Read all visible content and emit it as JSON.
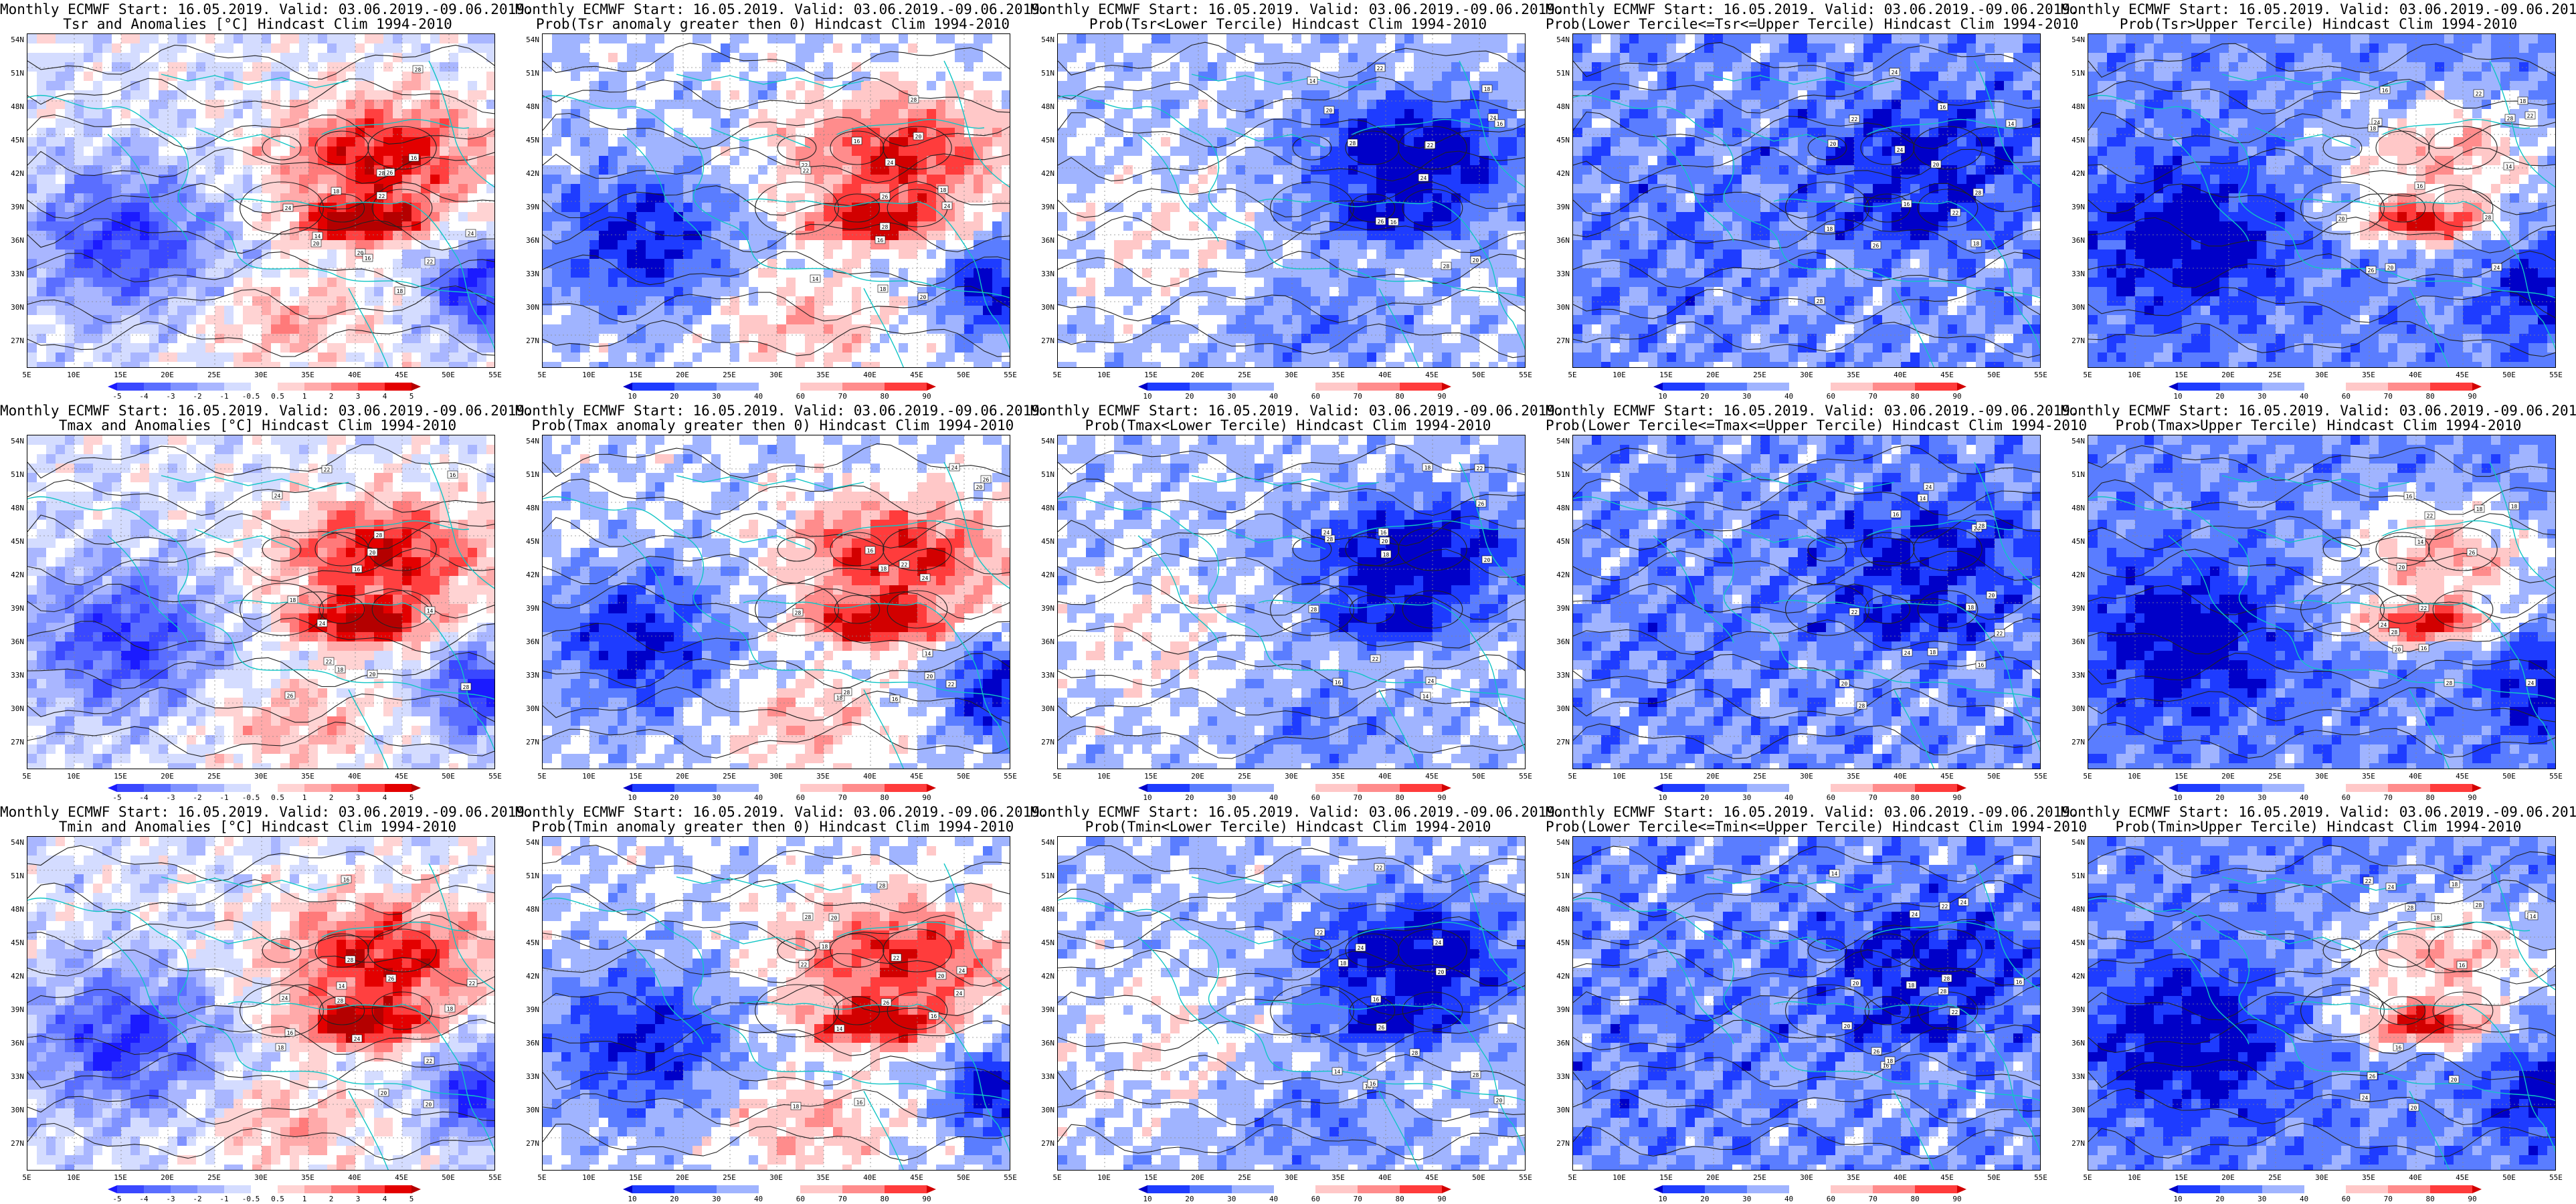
{
  "title_line1": "Monthly ECMWF Start: 16.05.2019. Valid: 03.06.2019.-09.06.2019.",
  "lat_labels": [
    "54N",
    "51N",
    "48N",
    "45N",
    "42N",
    "39N",
    "36N",
    "33N",
    "30N",
    "27N"
  ],
  "lon_labels": [
    "5E",
    "10E",
    "15E",
    "20E",
    "25E",
    "30E",
    "35E",
    "40E",
    "45E",
    "50E",
    "55E"
  ],
  "anomaly_scale": {
    "ticks": [
      "-5",
      "-4",
      "-3",
      "-2",
      "-1",
      "-0.5",
      "0.5",
      "1",
      "2",
      "3",
      "4",
      "5"
    ],
    "colors": [
      "#1b1bff",
      "#3a48ff",
      "#5a6eff",
      "#7f92ff",
      "#a9b6ff",
      "#d4dcff",
      "#ffffff",
      "#ffd3d3",
      "#ffaaaa",
      "#ff7a7a",
      "#ff4040",
      "#e30000",
      "#b40000"
    ]
  },
  "prob_scale": {
    "ticks": [
      "10",
      "20",
      "30",
      "40",
      "60",
      "70",
      "80",
      "90"
    ],
    "colors": [
      "#0000c8",
      "#1e3cff",
      "#5a7dff",
      "#a0b4ff",
      "#ffffff",
      "#ffc8c8",
      "#ff8c8c",
      "#ff3c3c",
      "#d20000"
    ]
  },
  "panels": [
    {
      "title2": "Tsr and Anomalies [°C] Hindcast Clim 1994-2010",
      "scale": "anomaly",
      "mode": "warm",
      "bias": 0.45
    },
    {
      "title2": "Prob(Tsr anomaly greater then 0) Hindcast Clim 1994-2010",
      "scale": "prob",
      "mode": "warm",
      "bias": 0.55
    },
    {
      "title2": "Prob(Tsr<Lower Tercile) Hindcast Clim 1994-2010",
      "scale": "prob",
      "mode": "cold",
      "bias": 0.25
    },
    {
      "title2": "Prob(Lower Tercile<=Tsr<=Upper Tercile) Hindcast Clim 1994-2010",
      "scale": "prob",
      "mode": "mid",
      "bias": 0.3
    },
    {
      "title2": "Prob(Tsr>Upper Tercile) Hindcast Clim 1994-2010",
      "scale": "prob",
      "mode": "split",
      "bias": 0.4
    },
    {
      "title2": "Tmax and Anomalies [°C] Hindcast Clim 1994-2010",
      "scale": "anomaly",
      "mode": "warm",
      "bias": 0.5
    },
    {
      "title2": "Prob(Tmax anomaly greater then 0) Hindcast Clim 1994-2010",
      "scale": "prob",
      "mode": "warm",
      "bias": 0.6
    },
    {
      "title2": "Prob(Tmax<Lower Tercile) Hindcast Clim 1994-2010",
      "scale": "prob",
      "mode": "cold",
      "bias": 0.2
    },
    {
      "title2": "Prob(Lower Tercile<=Tmax<=Upper Tercile) Hindcast Clim 1994-2010",
      "scale": "prob",
      "mode": "mid",
      "bias": 0.3
    },
    {
      "title2": "Prob(Tmax>Upper Tercile) Hindcast Clim 1994-2010",
      "scale": "prob",
      "mode": "split",
      "bias": 0.45
    },
    {
      "title2": "Tmin and Anomalies [°C] Hindcast Clim 1994-2010",
      "scale": "anomaly",
      "mode": "warm",
      "bias": 0.4
    },
    {
      "title2": "Prob(Tmin anomaly greater then 0) Hindcast Clim 1994-2010",
      "scale": "prob",
      "mode": "warm",
      "bias": 0.5
    },
    {
      "title2": "Prob(Tmin<Lower Tercile) Hindcast Clim 1994-2010",
      "scale": "prob",
      "mode": "cold",
      "bias": 0.2
    },
    {
      "title2": "Prob(Lower Tercile<=Tmin<=Upper Tercile) Hindcast Clim 1994-2010",
      "scale": "prob",
      "mode": "mid",
      "bias": 0.3
    },
    {
      "title2": "Prob(Tmin>Upper Tercile) Hindcast Clim 1994-2010",
      "scale": "prob",
      "mode": "split",
      "bias": 0.4
    }
  ]
}
